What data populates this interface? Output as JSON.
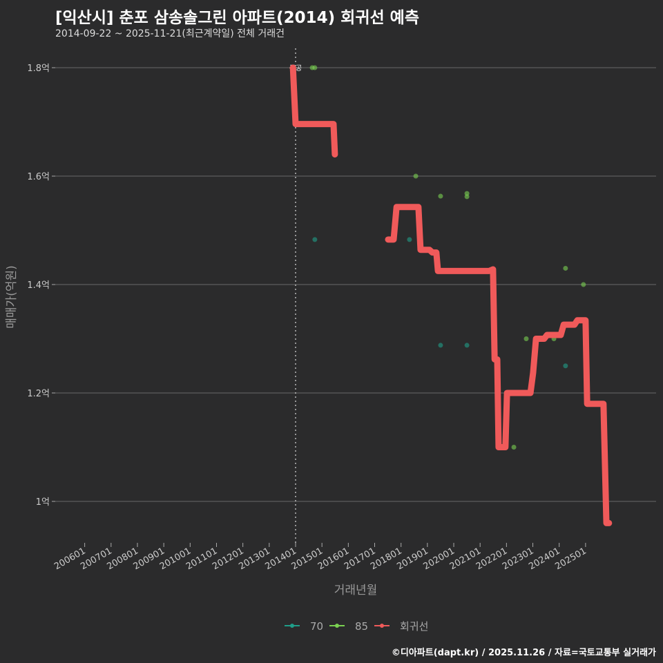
{
  "title": "[익산시] 춘포 삼송솔그린 아파트(2014) 회귀선 예측",
  "subtitle": "2014-09-22 ~ 2025-11-21(최근계약일) 전체 거래건",
  "caption": "©디아파트(dapt.kr) / 2025.11.26 / 자료=국토교통부 실거래가",
  "chart_data": {
    "type": "line",
    "xlabel": "거래년월",
    "ylabel": "매매가(억원)",
    "ylim": [
      0.9,
      1.85
    ],
    "xlim": [
      2005.9,
      2026.2
    ],
    "y_ticks": [
      {
        "v": 1.0,
        "label": "1억"
      },
      {
        "v": 1.2,
        "label": "1.2억"
      },
      {
        "v": 1.4,
        "label": "1.4억"
      },
      {
        "v": 1.6,
        "label": "1.6억"
      },
      {
        "v": 1.8,
        "label": "1.8억"
      }
    ],
    "x_ticks": [
      "200601",
      "200701",
      "200801",
      "200901",
      "201001",
      "201101",
      "201201",
      "201301",
      "201401",
      "201501",
      "201601",
      "201701",
      "201801",
      "201901",
      "202001",
      "202101",
      "202201",
      "202301",
      "202401",
      "202501"
    ],
    "annotation": {
      "x": 2014.0,
      "label": "준공"
    },
    "legend": {
      "placement": "bottom",
      "items": [
        {
          "label": "70",
          "color": "#1f9e89"
        },
        {
          "label": "85",
          "color": "#7ad151"
        },
        {
          "label": "회귀선",
          "color": "#f05a5a"
        }
      ]
    },
    "series": [
      {
        "name": "70",
        "type": "scatter",
        "color": "#1f9e89",
        "points": [
          [
            2014.73,
            1.483
          ],
          [
            2018.32,
            1.483
          ],
          [
            2019.5,
            1.288
          ],
          [
            2020.5,
            1.288
          ],
          [
            2024.24,
            1.25
          ]
        ]
      },
      {
        "name": "85",
        "type": "scatter",
        "color": "#7ad151",
        "points": [
          [
            2014.63,
            1.8
          ],
          [
            2014.73,
            1.8
          ],
          [
            2018.56,
            1.6
          ],
          [
            2019.5,
            1.563
          ],
          [
            2020.5,
            1.568
          ],
          [
            2020.5,
            1.562
          ],
          [
            2022.28,
            1.1
          ],
          [
            2022.75,
            1.3
          ],
          [
            2023.8,
            1.3
          ],
          [
            2024.24,
            1.43
          ],
          [
            2024.92,
            1.4
          ]
        ]
      },
      {
        "name": "회귀선",
        "type": "line",
        "color": "#f05a5a",
        "segments": [
          [
            [
              2013.9,
              1.8
            ],
            [
              2014.0,
              1.696
            ],
            [
              2015.44,
              1.696
            ],
            [
              2015.49,
              1.64
            ]
          ],
          [
            [
              2017.51,
              1.483
            ],
            [
              2017.72,
              1.483
            ],
            [
              2017.83,
              1.543
            ],
            [
              2018.66,
              1.543
            ],
            [
              2018.74,
              1.464
            ],
            [
              2019.08,
              1.464
            ],
            [
              2019.19,
              1.459
            ],
            [
              2019.34,
              1.459
            ],
            [
              2019.4,
              1.425
            ],
            [
              2021.34,
              1.425
            ],
            [
              2021.49,
              1.428
            ],
            [
              2021.55,
              1.262
            ],
            [
              2021.65,
              1.262
            ],
            [
              2021.7,
              1.1
            ],
            [
              2021.96,
              1.1
            ],
            [
              2022.02,
              1.2
            ],
            [
              2022.91,
              1.2
            ],
            [
              2023.01,
              1.237
            ],
            [
              2023.12,
              1.3
            ],
            [
              2023.43,
              1.3
            ],
            [
              2023.54,
              1.307
            ],
            [
              2024.06,
              1.307
            ],
            [
              2024.17,
              1.326
            ],
            [
              2024.58,
              1.326
            ],
            [
              2024.69,
              1.334
            ],
            [
              2025.0,
              1.334
            ],
            [
              2025.06,
              1.18
            ],
            [
              2025.68,
              1.18
            ],
            [
              2025.79,
              0.96
            ],
            [
              2025.89,
              0.96
            ]
          ]
        ]
      }
    ]
  }
}
